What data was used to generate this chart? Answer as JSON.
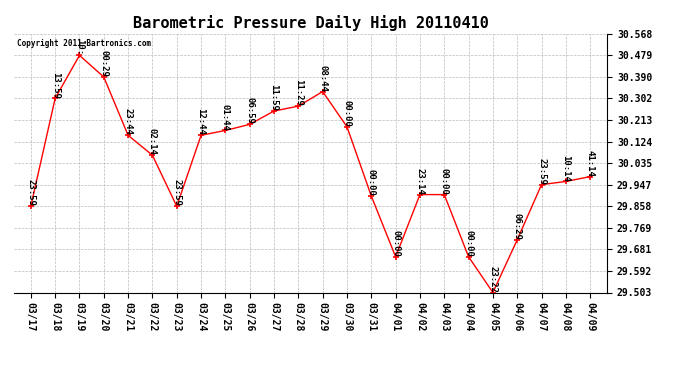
{
  "title": "Barometric Pressure Daily High 20110410",
  "copyright": "Copyright 2011 Bartronics.com",
  "x_labels": [
    "03/17",
    "03/18",
    "03/19",
    "03/20",
    "03/21",
    "03/22",
    "03/23",
    "03/24",
    "03/25",
    "03/26",
    "03/27",
    "03/28",
    "03/29",
    "03/30",
    "03/31",
    "04/01",
    "04/02",
    "04/03",
    "04/04",
    "04/05",
    "04/06",
    "04/07",
    "04/08",
    "04/09"
  ],
  "y_values": [
    29.858,
    30.302,
    30.479,
    30.39,
    30.15,
    30.068,
    29.858,
    30.15,
    30.17,
    30.195,
    30.25,
    30.27,
    30.33,
    30.185,
    29.9,
    29.65,
    29.906,
    29.906,
    29.65,
    29.503,
    29.72,
    29.947,
    29.96,
    29.98
  ],
  "point_labels": [
    "23:59",
    "13:59",
    "10:",
    "00:29",
    "23:44",
    "02:14",
    "23:59",
    "12:44",
    "01:44",
    "06:59",
    "11:59",
    "11:29",
    "08:44",
    "00:00",
    "00:00",
    "00:00",
    "23:14",
    "00:00",
    "00:00",
    "23:22",
    "06:29",
    "23:59",
    "10:14",
    "41:14"
  ],
  "y_ticks": [
    29.503,
    29.592,
    29.681,
    29.769,
    29.858,
    29.947,
    30.035,
    30.124,
    30.213,
    30.302,
    30.39,
    30.479,
    30.568
  ],
  "y_min": 29.503,
  "y_max": 30.568,
  "line_color": "#FF0000",
  "marker_color": "#FF0000",
  "background_color": "#FFFFFF",
  "grid_color": "#AAAAAA",
  "title_fontsize": 11,
  "tick_fontsize": 7,
  "label_fontsize": 6.5
}
